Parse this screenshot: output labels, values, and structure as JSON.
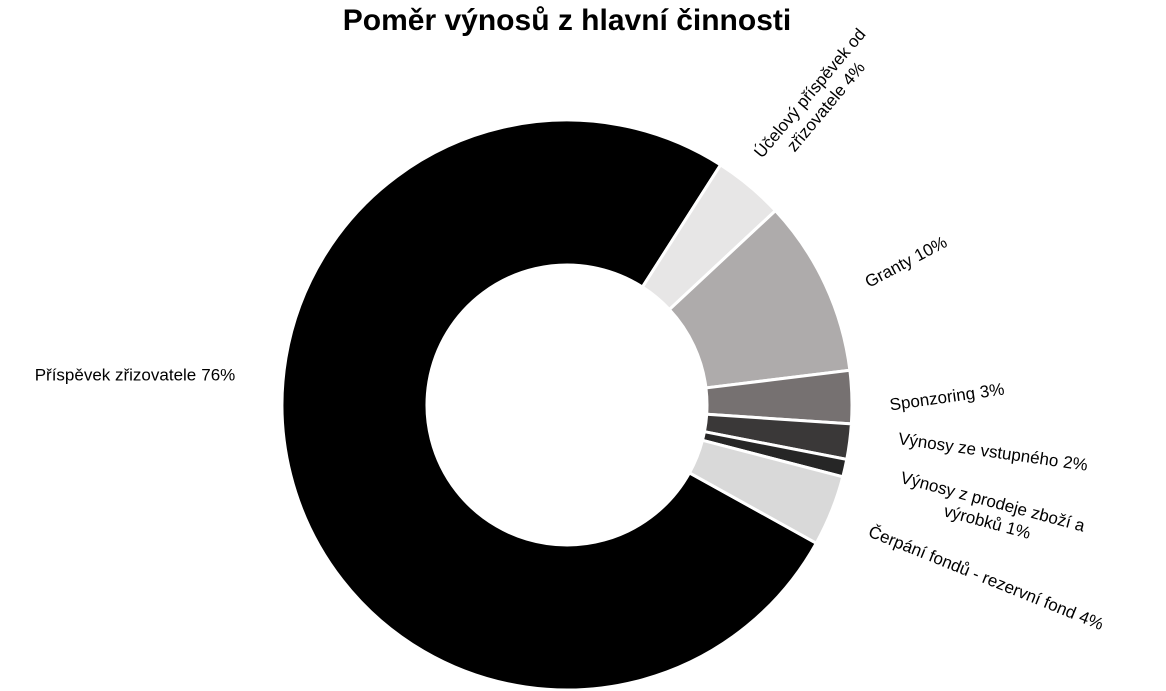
{
  "chart_data": {
    "type": "donut",
    "title": "Poměr výnosů z hlavní činnosti",
    "categories": [
      "Příspěvek zřizovatele",
      "Účelový příspěvek od zřizovatele",
      "Granty",
      "Sponzoring",
      "Výnosy ze vstupného",
      "Výnosy z prodeje zboží a výrobků",
      "Čerpání fondů - rezervní fond"
    ],
    "values": [
      76,
      4,
      10,
      3,
      2,
      1,
      4
    ],
    "value_labels": [
      "76%",
      "4%",
      "10%",
      "3%",
      "2%",
      "1%",
      "4%"
    ],
    "colors": [
      "#000000",
      "#e7e6e6",
      "#aeabab",
      "#767171",
      "#3a3838",
      "#262626",
      "#d9d9d9"
    ]
  }
}
